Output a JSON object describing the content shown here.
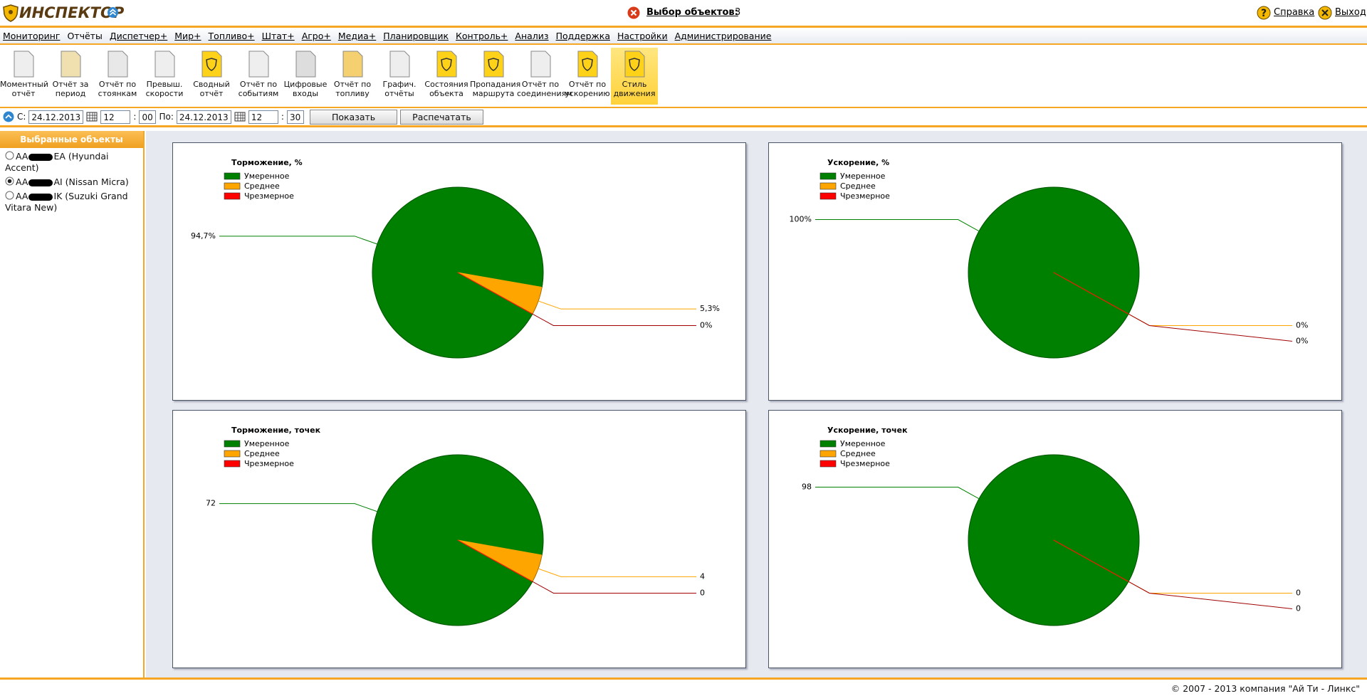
{
  "header": {
    "logo": "ИНСПЕКТОР",
    "selection_label": "Выбор объектов:",
    "selection_count": 3,
    "help": "Справка",
    "exit": "Выход"
  },
  "menu": [
    "Мониторинг",
    "Отчёты",
    "Диспетчер+",
    "Мир+",
    "Топливо+",
    "Штат+",
    "Агро+",
    "Медиа+",
    "Планировщик",
    "Контроль+",
    "Анализ",
    "Поддержка",
    "Настройки",
    "Администрирование"
  ],
  "menu_active": 1,
  "toolbar": [
    [
      "Моментный",
      "отчёт"
    ],
    [
      "Отчёт за",
      "период"
    ],
    [
      "Отчёт по",
      "стоянкам"
    ],
    [
      "Превыш.",
      "скорости"
    ],
    [
      "Сводный",
      "отчёт"
    ],
    [
      "Отчёт по",
      "событиям"
    ],
    [
      "Цифровые",
      "входы"
    ],
    [
      "Отчёт по",
      "топливу"
    ],
    [
      "Графич.",
      "отчёты"
    ],
    [
      "Состояния",
      "объекта"
    ],
    [
      "Пропадания",
      "маршрута"
    ],
    [
      "Отчёт по",
      "соединениям"
    ],
    [
      "Отчёт по",
      "ускорению"
    ],
    [
      "Стиль",
      "движения"
    ]
  ],
  "toolbar_active": 13,
  "filter": {
    "from_label": "С:",
    "from_date": "24.12.2013",
    "from_hour": "12",
    "from_min": "00",
    "to_label": "По:",
    "to_date": "24.12.2013",
    "to_hour": "12",
    "to_min": "30",
    "show": "Показать",
    "print": "Распечатать"
  },
  "sidebar": {
    "title": "Выбранные объекты",
    "objects": [
      {
        "prefix": "AA",
        "suffix": "EA (Hyundai Accent)"
      },
      {
        "prefix": "AA",
        "suffix": "AI (Nissan Micra)"
      },
      {
        "prefix": "AA",
        "suffix": "IK (Suzuki Grand Vitara New)"
      }
    ],
    "selected": 1
  },
  "footer": "© 2007 - 2013 компания \"Ай Ти - Линкс\"",
  "chart_data": [
    {
      "type": "pie",
      "title": "Торможение, %",
      "categories": [
        "Умеренное",
        "Среднее",
        "Чрезмерное"
      ],
      "values": [
        94.7,
        5.3,
        0
      ],
      "value_labels": [
        "94,7%",
        "5,3%",
        "0%"
      ],
      "colors": [
        "#008000",
        "#ffa500",
        "#ff0000"
      ]
    },
    {
      "type": "pie",
      "title": "Ускорение, %",
      "categories": [
        "Умеренное",
        "Среднее",
        "Чрезмерное"
      ],
      "values": [
        100,
        0,
        0
      ],
      "value_labels": [
        "100%",
        "0%",
        "0%"
      ],
      "colors": [
        "#008000",
        "#ffa500",
        "#ff0000"
      ]
    },
    {
      "type": "pie",
      "title": "Торможение, точек",
      "categories": [
        "Умеренное",
        "Среднее",
        "Чрезмерное"
      ],
      "values": [
        72,
        4,
        0
      ],
      "colors": [
        "#008000",
        "#ffa500",
        "#ff0000"
      ]
    },
    {
      "type": "pie",
      "title": "Ускорение, точек",
      "categories": [
        "Умеренное",
        "Среднее",
        "Чрезмерное"
      ],
      "values": [
        98,
        0,
        0
      ],
      "colors": [
        "#008000",
        "#ffa500",
        "#ff0000"
      ]
    }
  ]
}
